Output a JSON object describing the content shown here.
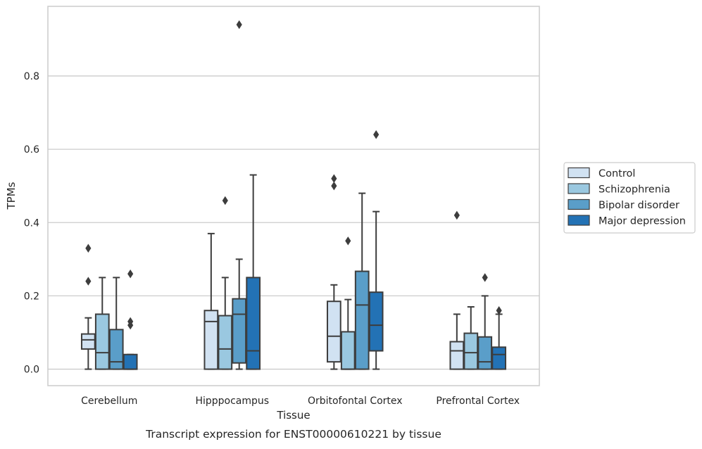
{
  "caption": "Transcript expression for ENST00000610221 by tissue",
  "chart_data": {
    "type": "box",
    "title": "",
    "xlabel": "Tissue",
    "ylabel": "TPMs",
    "ylim": [
      -0.045,
      0.99
    ],
    "yticks": [
      0.0,
      0.2,
      0.4,
      0.6,
      0.8
    ],
    "ytick_labels": [
      "0.0",
      "0.2",
      "0.4",
      "0.6",
      "0.8"
    ],
    "grid": "horizontal",
    "legend_position": "right-outside",
    "categories": [
      "Cerebellum",
      "Hipppocampus",
      "Orbitofontal Cortex",
      "Prefrontal Cortex"
    ],
    "series": [
      {
        "name": "Control",
        "color": "#d1e2f2",
        "boxes": [
          {
            "whisker_low": 0.0,
            "q1": 0.055,
            "median": 0.08,
            "q3": 0.096,
            "whisker_high": 0.14,
            "outliers": [
              0.24,
              0.33
            ]
          },
          {
            "whisker_low": 0.0,
            "q1": 0.0,
            "median": 0.13,
            "q3": 0.16,
            "whisker_high": 0.37,
            "outliers": []
          },
          {
            "whisker_low": 0.0,
            "q1": 0.02,
            "median": 0.09,
            "q3": 0.185,
            "whisker_high": 0.23,
            "outliers": [
              0.5,
              0.52
            ]
          },
          {
            "whisker_low": 0.0,
            "q1": 0.0,
            "median": 0.05,
            "q3": 0.075,
            "whisker_high": 0.15,
            "outliers": [
              0.42
            ]
          }
        ]
      },
      {
        "name": "Schizophrenia",
        "color": "#9ac8e0",
        "boxes": [
          {
            "whisker_low": 0.0,
            "q1": 0.0,
            "median": 0.045,
            "q3": 0.15,
            "whisker_high": 0.25,
            "outliers": []
          },
          {
            "whisker_low": 0.0,
            "q1": 0.0,
            "median": 0.055,
            "q3": 0.146,
            "whisker_high": 0.25,
            "outliers": [
              0.46
            ]
          },
          {
            "whisker_low": 0.0,
            "q1": 0.0,
            "median": 0.0,
            "q3": 0.102,
            "whisker_high": 0.19,
            "outliers": [
              0.35
            ]
          },
          {
            "whisker_low": 0.0,
            "q1": 0.0,
            "median": 0.045,
            "q3": 0.098,
            "whisker_high": 0.17,
            "outliers": []
          }
        ]
      },
      {
        "name": "Bipolar disorder",
        "color": "#5a9ec9",
        "boxes": [
          {
            "whisker_low": 0.0,
            "q1": 0.0,
            "median": 0.02,
            "q3": 0.108,
            "whisker_high": 0.25,
            "outliers": []
          },
          {
            "whisker_low": 0.0,
            "q1": 0.017,
            "median": 0.15,
            "q3": 0.192,
            "whisker_high": 0.3,
            "outliers": [
              0.94
            ]
          },
          {
            "whisker_low": 0.0,
            "q1": 0.0,
            "median": 0.175,
            "q3": 0.267,
            "whisker_high": 0.48,
            "outliers": []
          },
          {
            "whisker_low": 0.0,
            "q1": 0.0,
            "median": 0.02,
            "q3": 0.088,
            "whisker_high": 0.2,
            "outliers": [
              0.25
            ]
          }
        ]
      },
      {
        "name": "Major depression",
        "color": "#2372b5",
        "boxes": [
          {
            "whisker_low": 0.0,
            "q1": 0.0,
            "median": 0.0,
            "q3": 0.04,
            "whisker_high": 0.04,
            "outliers": [
              0.12,
              0.13,
              0.26
            ]
          },
          {
            "whisker_low": 0.0,
            "q1": 0.0,
            "median": 0.05,
            "q3": 0.25,
            "whisker_high": 0.53,
            "outliers": []
          },
          {
            "whisker_low": 0.0,
            "q1": 0.05,
            "median": 0.12,
            "q3": 0.21,
            "whisker_high": 0.43,
            "outliers": [
              0.64
            ]
          },
          {
            "whisker_low": 0.0,
            "q1": 0.0,
            "median": 0.04,
            "q3": 0.06,
            "whisker_high": 0.15,
            "outliers": [
              0.16
            ]
          }
        ]
      }
    ]
  }
}
